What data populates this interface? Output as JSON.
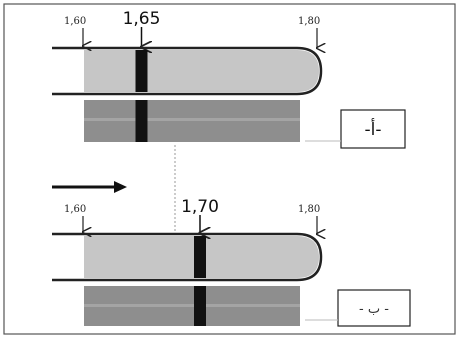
{
  "diagram": {
    "panel_a": {
      "label": "-أ-",
      "scale_left": "1,60",
      "scale_right": "1,80",
      "band_value": "1,65",
      "band_position": 1.65
    },
    "panel_b": {
      "label": "- ب -",
      "scale_left": "1,60",
      "scale_right": "1,80",
      "band_value": "1,70",
      "band_position": 1.7
    }
  },
  "colors": {
    "tube_fill": "#c6c6c6",
    "strip_fill": "#8e8e8e",
    "band": "#111111",
    "outline": "#222222",
    "frame": "#555555"
  }
}
